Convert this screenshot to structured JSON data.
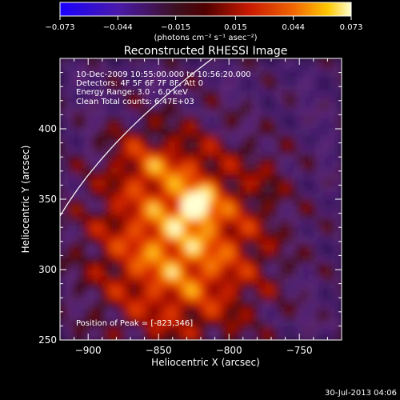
{
  "chart_data": {
    "type": "heatmap",
    "title": "Reconstructed RHESSI Image",
    "xlabel": "Heliocentric X (arcsec)",
    "ylabel": "Heliocentric Y (arcsec)",
    "xlim": [
      -920,
      -720
    ],
    "ylim": [
      250,
      450
    ],
    "x_ticks": [
      -900,
      -850,
      -800,
      -750
    ],
    "y_ticks": [
      250,
      300,
      350,
      400
    ],
    "x_tick_labels": [
      "−900",
      "−850",
      "−800",
      "−750"
    ],
    "y_tick_labels": [
      "250",
      "300",
      "350",
      "400"
    ],
    "colorbar": {
      "range": [
        -0.073,
        0.073
      ],
      "ticks": [
        -0.073,
        -0.044,
        -0.015,
        0.015,
        0.044,
        0.073
      ],
      "tick_labels": [
        "−0.073",
        "−0.044",
        "−0.015",
        "0.015",
        "0.044",
        "0.073"
      ],
      "units": "(photons cm⁻² s⁻¹ asec⁻²)"
    },
    "annotations": [
      "10-Dec-2009 10:55:00.000 to 10:56:20.000",
      "Detectors: 4F 5F 6F 7F 8F, Att 0",
      "Energy Range: 3.0 - 6.0 keV",
      "Clean     Total counts: 6.47E+03"
    ],
    "peak_label": "Position of Peak = [-823,346]",
    "peak": [
      -823,
      346
    ],
    "limb_visible": true
  },
  "footer": {
    "date": "30-Jul-2013 04:06"
  },
  "colors": {
    "background": "#000000",
    "text": "#ffffff"
  }
}
